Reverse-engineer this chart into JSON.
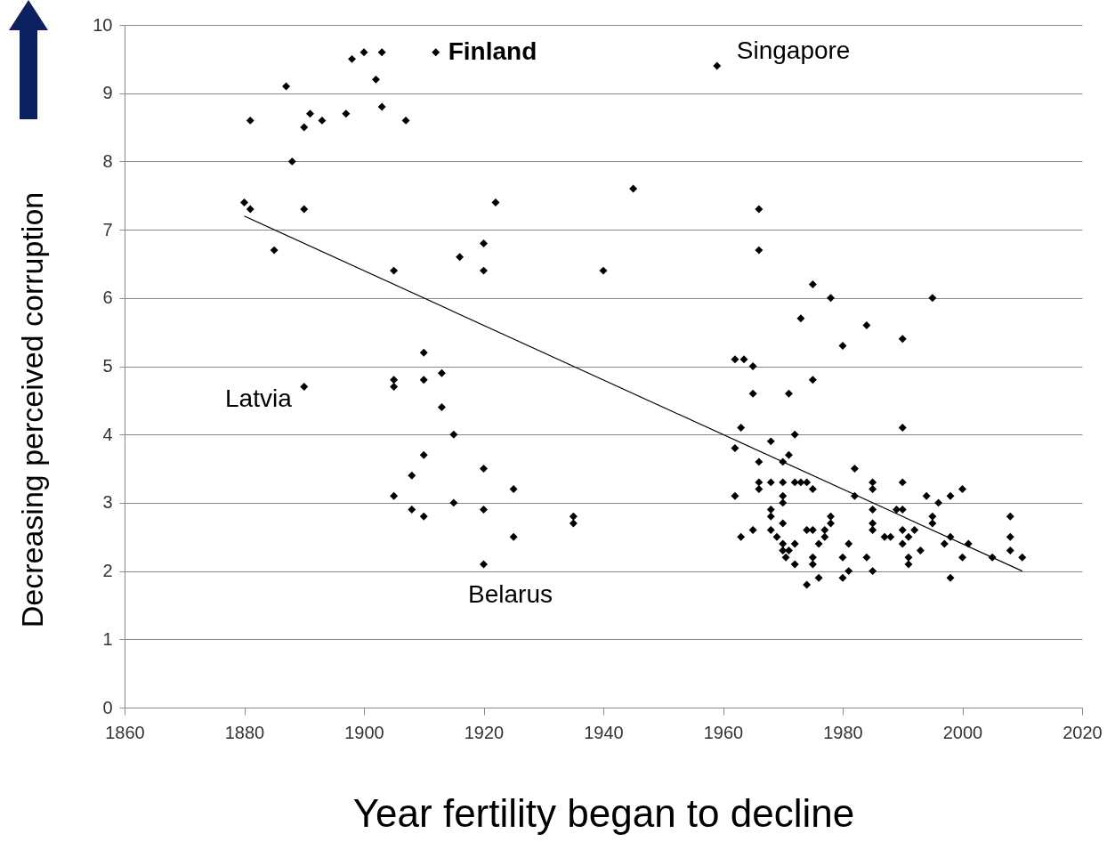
{
  "chart_data": {
    "type": "scatter",
    "xlabel": "Year fertility began to decline",
    "ylabel": "Decreasing perceived corruption",
    "xlim": [
      1860,
      2020
    ],
    "xticks": [
      1860,
      1880,
      1900,
      1920,
      1940,
      1960,
      1980,
      2000,
      2020
    ],
    "ylim": [
      0,
      10
    ],
    "yticks": [
      0,
      1,
      2,
      3,
      4,
      5,
      6,
      7,
      8,
      9,
      10
    ],
    "grid": "y",
    "marker": "diamond",
    "series": [
      {
        "color": "#000000",
        "x": [
          1880,
          1881,
          1881,
          1885,
          1887,
          1888,
          1890,
          1890,
          1890,
          1891,
          1893,
          1897,
          1898,
          1900,
          1902,
          1903,
          1903,
          1905,
          1905,
          1905,
          1905,
          1907,
          1908,
          1908,
          1910,
          1910,
          1910,
          1910,
          1912,
          1913,
          1913,
          1915,
          1915,
          1916,
          1920,
          1920,
          1920,
          1920,
          1920,
          1922,
          1925,
          1925,
          1935,
          1935,
          1940,
          1945,
          1959,
          1966,
          1966,
          1975,
          1978,
          1995,
          1973,
          1984,
          1980,
          1990,
          1962,
          1963.5,
          1965,
          1975,
          1965,
          1971,
          1963,
          1990,
          1972,
          1968,
          1962,
          1971,
          1970,
          1966,
          1982,
          1966,
          1968,
          1970,
          1972,
          1973,
          1974,
          1985,
          1990,
          1966,
          1975,
          1985,
          2000,
          1962,
          1982,
          1998,
          1970,
          1994,
          1970,
          1996,
          1968,
          1985,
          1989,
          1990,
          1968,
          1978,
          1995,
          2008,
          1970,
          1978,
          1985,
          1995,
          1963,
          1965,
          1968,
          1974,
          1975,
          1977,
          1985,
          1990,
          1992,
          1969,
          1987,
          1988,
          1991,
          1998,
          2008,
          1970,
          1977,
          1976,
          1981,
          1990,
          1997,
          2001,
          1971,
          1972,
          1970,
          1993,
          2008,
          1970.5,
          1975,
          1980,
          1984,
          1991,
          2000,
          2005,
          2010,
          1972,
          1975,
          1991,
          1981,
          1985,
          1980,
          1976,
          1998,
          1974
        ],
        "values": [
          7.4,
          7.3,
          8.6,
          6.7,
          9.1,
          8.0,
          8.5,
          7.3,
          4.7,
          8.7,
          8.6,
          8.7,
          9.5,
          9.6,
          9.2,
          9.6,
          8.8,
          6.4,
          4.8,
          4.7,
          3.1,
          8.6,
          3.4,
          2.9,
          5.2,
          4.8,
          3.7,
          2.8,
          9.6,
          4.9,
          4.4,
          4.0,
          3.0,
          6.6,
          6.8,
          6.4,
          3.5,
          2.9,
          2.1,
          7.4,
          3.2,
          2.5,
          2.8,
          2.7,
          6.4,
          7.6,
          9.4,
          7.3,
          6.7,
          6.2,
          6.0,
          6.0,
          5.7,
          5.6,
          5.3,
          5.4,
          5.1,
          5.1,
          5.0,
          4.8,
          4.6,
          4.6,
          4.1,
          4.1,
          4.0,
          3.9,
          3.8,
          3.7,
          3.6,
          3.6,
          3.5,
          3.3,
          3.3,
          3.3,
          3.3,
          3.3,
          3.3,
          3.3,
          3.3,
          3.2,
          3.2,
          3.2,
          3.2,
          3.1,
          3.1,
          3.1,
          3.1,
          3.1,
          3.0,
          3.0,
          2.9,
          2.9,
          2.9,
          2.9,
          2.8,
          2.8,
          2.8,
          2.8,
          2.7,
          2.7,
          2.7,
          2.7,
          2.5,
          2.6,
          2.6,
          2.6,
          2.6,
          2.6,
          2.6,
          2.6,
          2.6,
          2.5,
          2.5,
          2.5,
          2.5,
          2.5,
          2.5,
          2.4,
          2.5,
          2.4,
          2.4,
          2.4,
          2.4,
          2.4,
          2.3,
          2.4,
          2.3,
          2.3,
          2.3,
          2.2,
          2.2,
          2.2,
          2.2,
          2.2,
          2.2,
          2.2,
          2.2,
          2.1,
          2.1,
          2.1,
          2.0,
          2.0,
          1.9,
          1.9,
          1.9,
          1.8
        ]
      },
      {
        "type": "line",
        "marker": "none",
        "color": "#000000",
        "x": [
          1880,
          2010
        ],
        "values": [
          7.2,
          2.0
        ]
      }
    ],
    "annotations": [
      {
        "text": "Finland",
        "x": 1912,
        "y": 9.6
      },
      {
        "text": "Singapore",
        "x": 1959,
        "y": 9.4
      },
      {
        "text": "Latvia",
        "x": 1890,
        "y": 4.7
      },
      {
        "text": "Belarus",
        "x": 1920,
        "y": 2.1
      }
    ]
  }
}
